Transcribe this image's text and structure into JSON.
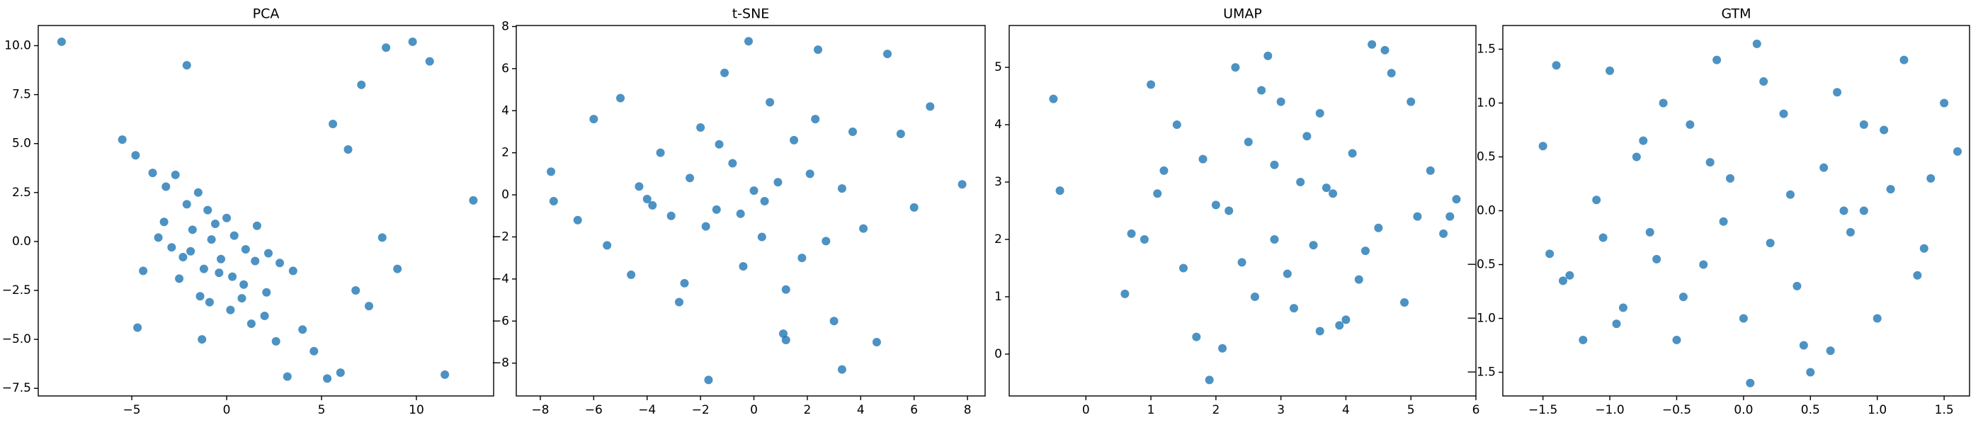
{
  "chart_data": [
    {
      "type": "scatter",
      "title": "PCA",
      "color": "#1f77b4",
      "x": [
        -8.7,
        -2.1,
        -5.5,
        -4.8,
        -3.9,
        -3.2,
        -2.7,
        -2.1,
        -1.5,
        -1.0,
        -0.6,
        0.0,
        0.4,
        1.0,
        1.6,
        2.2,
        2.8,
        3.5,
        -4.4,
        -3.6,
        -2.9,
        -2.3,
        -1.8,
        -1.2,
        -0.8,
        -0.3,
        0.3,
        0.9,
        1.5,
        2.1,
        -3.3,
        -2.5,
        -1.9,
        -1.4,
        -0.9,
        -0.4,
        0.2,
        0.8,
        1.3,
        2.0,
        2.6,
        3.2,
        4.0,
        4.6,
        5.3,
        6.0,
        6.8,
        7.5,
        8.2,
        9.0,
        9.8,
        10.7,
        5.6,
        7.1,
        8.4,
        6.4,
        13.0,
        11.5,
        -4.7,
        -1.3
      ],
      "values": [
        10.2,
        9.0,
        5.2,
        4.4,
        3.5,
        2.8,
        3.4,
        1.9,
        2.5,
        1.6,
        0.9,
        1.2,
        0.3,
        -0.4,
        0.8,
        -0.6,
        -1.1,
        -1.5,
        -1.5,
        0.2,
        -0.3,
        -0.8,
        0.6,
        -1.4,
        0.1,
        -0.9,
        -1.8,
        -2.2,
        -1.0,
        -2.6,
        1.0,
        -1.9,
        -0.5,
        -2.8,
        -3.1,
        -1.6,
        -3.5,
        -2.9,
        -4.2,
        -3.8,
        -5.1,
        -6.9,
        -4.5,
        -5.6,
        -7.0,
        -6.7,
        -2.5,
        -3.3,
        0.2,
        -1.4,
        10.2,
        9.2,
        6.0,
        8.0,
        9.9,
        4.7,
        2.1,
        -6.8,
        -4.4,
        -5.0
      ],
      "xlim": [
        -9.93,
        14.07
      ],
      "ylim": [
        -7.89,
        11.03
      ],
      "xticks": [
        {
          "value": -5,
          "label": "−5"
        },
        0,
        5,
        10
      ],
      "yticks": [
        {
          "value": -7.5,
          "label": "−7.5"
        },
        {
          "value": -5,
          "label": "−5.0"
        },
        {
          "value": -2.5,
          "label": "−2.5"
        },
        {
          "value": 0,
          "label": "0.0"
        },
        2.5,
        {
          "value": 5,
          "label": "5.0"
        },
        7.5,
        {
          "value": 10,
          "label": "10.0"
        }
      ]
    },
    {
      "type": "scatter",
      "title": "t-SNE",
      "color": "#1f77b4",
      "x": [
        -7.6,
        -7.5,
        -6.6,
        -6.0,
        -5.5,
        -5.0,
        -4.6,
        -4.3,
        -4.0,
        -3.5,
        -3.1,
        -2.8,
        -2.4,
        -2.0,
        -1.7,
        -1.4,
        -1.1,
        -0.8,
        -0.5,
        -0.2,
        0.0,
        0.3,
        0.6,
        0.9,
        1.2,
        1.5,
        1.8,
        2.1,
        2.4,
        2.7,
        3.0,
        3.3,
        3.7,
        4.1,
        4.6,
        5.0,
        5.5,
        6.0,
        6.6,
        7.8,
        -1.8,
        -1.3,
        -0.4,
        0.4,
        1.1,
        1.2,
        3.3,
        -2.6,
        2.3,
        -3.8
      ],
      "values": [
        1.1,
        -0.3,
        -1.2,
        3.6,
        -2.4,
        4.6,
        -3.8,
        0.4,
        -0.2,
        2.0,
        -1.0,
        -5.1,
        0.8,
        3.2,
        -8.8,
        -0.7,
        5.8,
        1.5,
        -0.9,
        7.3,
        0.2,
        -2.0,
        4.4,
        0.6,
        -4.5,
        2.6,
        -3.0,
        1.0,
        6.9,
        -2.2,
        -6.0,
        0.3,
        3.0,
        -1.6,
        -7.0,
        6.7,
        2.9,
        -0.6,
        4.2,
        0.5,
        -1.5,
        2.4,
        -3.4,
        -0.3,
        -6.6,
        -6.9,
        -8.3,
        -4.2,
        3.6,
        -0.5
      ],
      "xlim": [
        -8.9,
        8.66
      ],
      "ylim": [
        -9.56,
        8.05
      ],
      "xticks": [
        {
          "value": -8,
          "label": "−8"
        },
        {
          "value": -6,
          "label": "−6"
        },
        {
          "value": -4,
          "label": "−4"
        },
        {
          "value": -2,
          "label": "−2"
        },
        0,
        2,
        4,
        6,
        8
      ],
      "yticks": [
        {
          "value": -8,
          "label": "−8"
        },
        {
          "value": -6,
          "label": "−6"
        },
        {
          "value": -4,
          "label": "−4"
        },
        {
          "value": -2,
          "label": "−2"
        },
        0,
        2,
        4,
        6,
        8
      ]
    },
    {
      "type": "scatter",
      "title": "UMAP",
      "color": "#1f77b4",
      "x": [
        -0.5,
        -0.4,
        0.6,
        0.7,
        1.0,
        1.2,
        1.5,
        1.7,
        1.9,
        2.0,
        2.1,
        2.3,
        2.5,
        2.6,
        2.8,
        2.9,
        3.0,
        3.2,
        3.3,
        3.5,
        3.6,
        3.8,
        3.9,
        4.1,
        4.2,
        4.4,
        4.5,
        4.7,
        4.9,
        5.0,
        5.1,
        5.3,
        5.5,
        5.6,
        5.7,
        0.9,
        1.4,
        1.8,
        2.2,
        2.7,
        3.1,
        3.4,
        3.7,
        4.0,
        4.3,
        4.6,
        1.1,
        2.4,
        2.9,
        3.6
      ],
      "values": [
        4.45,
        2.85,
        1.05,
        2.1,
        4.7,
        3.2,
        1.5,
        0.3,
        -0.45,
        2.6,
        0.1,
        5.0,
        3.7,
        1.0,
        5.2,
        2.0,
        4.4,
        0.8,
        3.0,
        1.9,
        4.2,
        2.8,
        0.5,
        3.5,
        1.3,
        5.4,
        2.2,
        4.9,
        0.9,
        4.4,
        2.4,
        3.2,
        2.1,
        2.4,
        2.7,
        2.0,
        4.0,
        3.4,
        2.5,
        4.6,
        1.4,
        3.8,
        2.9,
        0.6,
        1.8,
        5.3,
        2.8,
        1.6,
        3.3,
        0.4
      ],
      "xlim": [
        -1.18,
        6.0
      ],
      "ylim": [
        -0.73,
        5.73
      ],
      "xticks": [
        0,
        1,
        2,
        3,
        4,
        5,
        6
      ],
      "yticks": [
        0,
        1,
        2,
        3,
        4,
        5
      ]
    },
    {
      "type": "scatter",
      "title": "GTM",
      "color": "#1f77b4",
      "x": [
        -1.5,
        -1.45,
        -1.4,
        -1.3,
        -1.2,
        -1.1,
        -1.0,
        -0.9,
        -0.8,
        -0.7,
        -0.6,
        -0.5,
        -0.4,
        -0.3,
        -0.2,
        -0.1,
        0.0,
        0.1,
        0.2,
        0.3,
        0.4,
        0.5,
        0.6,
        0.7,
        0.8,
        0.9,
        1.0,
        1.1,
        1.2,
        1.3,
        1.4,
        1.5,
        1.6,
        -1.35,
        -1.05,
        -0.75,
        -0.45,
        -0.15,
        0.15,
        0.45,
        0.75,
        1.05,
        1.35,
        -0.95,
        -0.25,
        0.05,
        0.35,
        0.65,
        -0.65,
        0.9
      ],
      "values": [
        0.6,
        -0.4,
        1.35,
        -0.6,
        -1.2,
        0.1,
        1.3,
        -0.9,
        0.5,
        -0.2,
        1.0,
        -1.2,
        0.8,
        -0.5,
        1.4,
        0.3,
        -1.0,
        1.55,
        -0.3,
        0.9,
        -0.7,
        -1.5,
        0.4,
        1.1,
        -0.2,
        0.8,
        -1.0,
        0.2,
        1.4,
        -0.6,
        0.3,
        1.0,
        0.55,
        -0.65,
        -0.25,
        0.65,
        -0.8,
        -0.1,
        1.2,
        -1.25,
        0.0,
        0.75,
        -0.35,
        -1.05,
        0.45,
        -1.6,
        0.15,
        -1.3,
        -0.45,
        0.0
      ],
      "xlim": [
        -1.8,
        1.69
      ],
      "ylim": [
        -1.72,
        1.72
      ],
      "xticks": [
        {
          "value": -1.5,
          "label": "−1.5"
        },
        {
          "value": -1,
          "label": "−1.0"
        },
        {
          "value": -0.5,
          "label": "−0.5"
        },
        {
          "value": 0,
          "label": "0.0"
        },
        0.5,
        {
          "value": 1,
          "label": "1.0"
        },
        1.5
      ],
      "yticks": [
        {
          "value": -1.5,
          "label": "−1.5"
        },
        {
          "value": -1,
          "label": "−1.0"
        },
        {
          "value": -0.5,
          "label": "−0.5"
        },
        {
          "value": 0,
          "label": "0.0"
        },
        0.5,
        {
          "value": 1,
          "label": "1.0"
        },
        1.5
      ]
    }
  ]
}
